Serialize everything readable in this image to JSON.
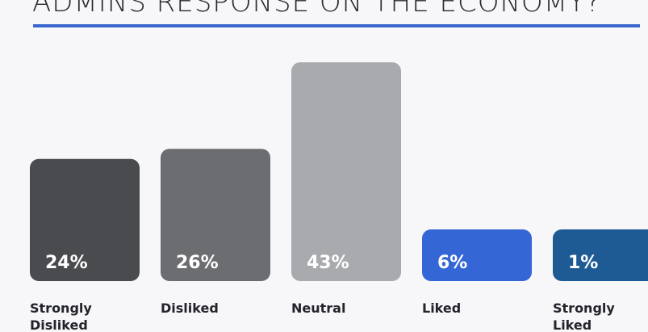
{
  "chart_data": {
    "type": "bar",
    "title": "ADMINS RESPONSE ON THE ECONOMY?",
    "categories": [
      "Strongly Disliked",
      "Disliked",
      "Neutral",
      "Liked",
      "Strongly Liked"
    ],
    "values": [
      24,
      26,
      43,
      6,
      1
    ],
    "value_labels": [
      "24%",
      "26%",
      "43%",
      "6%",
      "1%"
    ],
    "bar_colors": [
      "#4a4b4e",
      "#6c6d71",
      "#a9aaae",
      "#3566d6",
      "#1e5a94"
    ],
    "accent_color": "#3a67cf",
    "unit": "%",
    "grid": false,
    "legend": "none"
  }
}
